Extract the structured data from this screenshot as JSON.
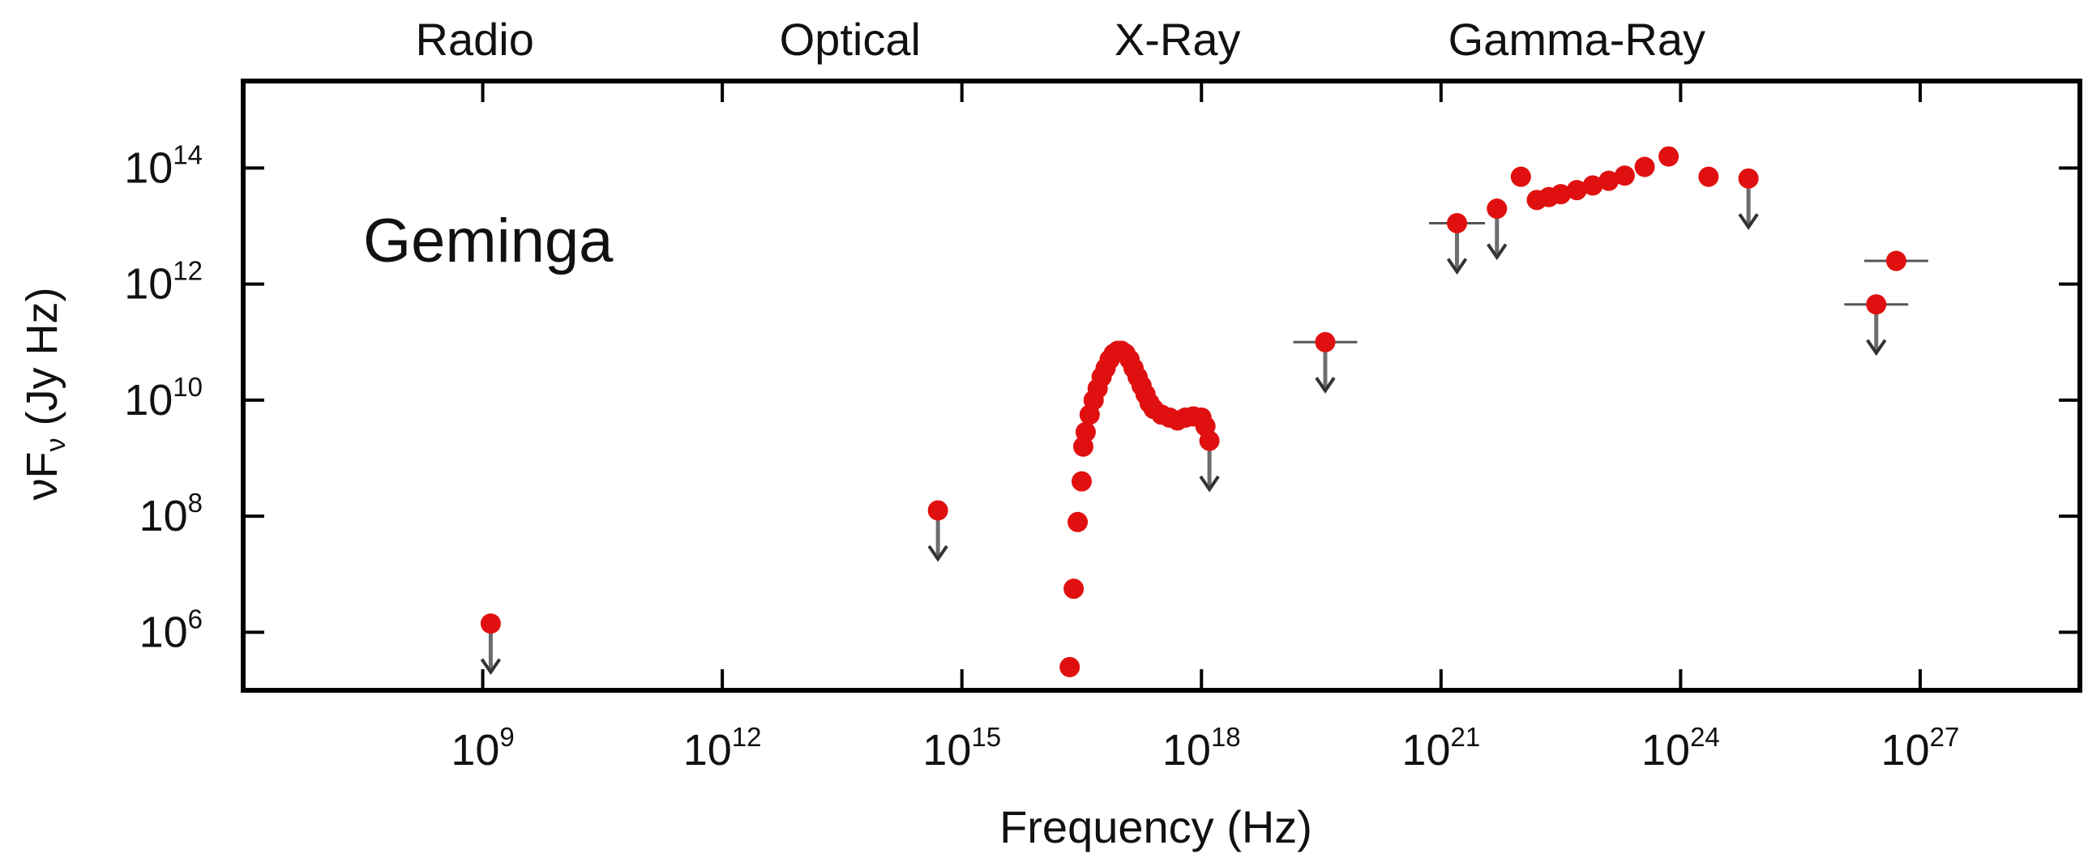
{
  "chart_data": {
    "type": "scatter",
    "title": "",
    "annotation": "Geminga",
    "xlabel": "Frequency (Hz)",
    "ylabel": "νF_ν (Jy Hz)",
    "x_scale": "log10",
    "y_scale": "log10",
    "xlim_exp": [
      6.0,
      29.0
    ],
    "ylim_exp": [
      5.0,
      15.5
    ],
    "x_ticks": [
      {
        "exp": 9,
        "label": "10",
        "sup": "9"
      },
      {
        "exp": 12,
        "label": "10",
        "sup": "12"
      },
      {
        "exp": 15,
        "label": "10",
        "sup": "15"
      },
      {
        "exp": 18,
        "label": "10",
        "sup": "18"
      },
      {
        "exp": 21,
        "label": "10",
        "sup": "21"
      },
      {
        "exp": 24,
        "label": "10",
        "sup": "24"
      },
      {
        "exp": 27,
        "label": "10",
        "sup": "27"
      }
    ],
    "y_ticks": [
      {
        "exp": 6,
        "label": "10",
        "sup": "6"
      },
      {
        "exp": 8,
        "label": "10",
        "sup": "8"
      },
      {
        "exp": 10,
        "label": "10",
        "sup": "10"
      },
      {
        "exp": 12,
        "label": "10",
        "sup": "12"
      },
      {
        "exp": 14,
        "label": "10",
        "sup": "14"
      }
    ],
    "bands": [
      {
        "name": "Radio",
        "center_exp": 8.9
      },
      {
        "name": "Optical",
        "center_exp": 13.6
      },
      {
        "name": "X-Ray",
        "center_exp": 17.7
      },
      {
        "name": "Gamma-Ray",
        "center_exp": 22.7
      }
    ],
    "series": [
      {
        "color": "#e01010",
        "points": [
          {
            "x": 9.1,
            "y": 6.15,
            "ul": true
          },
          {
            "x": 14.7,
            "y": 8.1,
            "ul": true
          },
          {
            "x": 16.35,
            "y": 5.4
          },
          {
            "x": 16.4,
            "y": 6.75
          },
          {
            "x": 16.45,
            "y": 7.9
          },
          {
            "x": 16.5,
            "y": 8.6
          },
          {
            "x": 16.52,
            "y": 9.2
          },
          {
            "x": 16.55,
            "y": 9.45
          },
          {
            "x": 16.6,
            "y": 9.75
          },
          {
            "x": 16.65,
            "y": 10.0
          },
          {
            "x": 16.7,
            "y": 10.2
          },
          {
            "x": 16.75,
            "y": 10.4
          },
          {
            "x": 16.8,
            "y": 10.55
          },
          {
            "x": 16.85,
            "y": 10.7
          },
          {
            "x": 16.9,
            "y": 10.8
          },
          {
            "x": 16.95,
            "y": 10.85
          },
          {
            "x": 17.0,
            "y": 10.85
          },
          {
            "x": 17.05,
            "y": 10.8
          },
          {
            "x": 17.1,
            "y": 10.7
          },
          {
            "x": 17.15,
            "y": 10.55
          },
          {
            "x": 17.2,
            "y": 10.4
          },
          {
            "x": 17.25,
            "y": 10.25
          },
          {
            "x": 17.3,
            "y": 10.1
          },
          {
            "x": 17.35,
            "y": 9.95
          },
          {
            "x": 17.4,
            "y": 9.85
          },
          {
            "x": 17.5,
            "y": 9.75
          },
          {
            "x": 17.6,
            "y": 9.7
          },
          {
            "x": 17.7,
            "y": 9.65
          },
          {
            "x": 17.8,
            "y": 9.7
          },
          {
            "x": 17.9,
            "y": 9.72
          },
          {
            "x": 18.0,
            "y": 9.7
          },
          {
            "x": 18.05,
            "y": 9.55
          },
          {
            "x": 18.1,
            "y": 9.3,
            "ul": true
          },
          {
            "x": 19.55,
            "y": 11.0,
            "ul": true,
            "xerr": 0.4
          },
          {
            "x": 21.2,
            "y": 13.05,
            "ul": true,
            "xerr": 0.35
          },
          {
            "x": 21.7,
            "y": 13.3,
            "ul": true
          },
          {
            "x": 22.0,
            "y": 13.85
          },
          {
            "x": 22.2,
            "y": 13.45
          },
          {
            "x": 22.35,
            "y": 13.5
          },
          {
            "x": 22.5,
            "y": 13.55
          },
          {
            "x": 22.7,
            "y": 13.62
          },
          {
            "x": 22.9,
            "y": 13.7
          },
          {
            "x": 23.1,
            "y": 13.78
          },
          {
            "x": 23.3,
            "y": 13.87
          },
          {
            "x": 23.55,
            "y": 14.02
          },
          {
            "x": 23.85,
            "y": 14.2
          },
          {
            "x": 24.35,
            "y": 13.85
          },
          {
            "x": 24.85,
            "y": 13.82,
            "ul": true
          },
          {
            "x": 26.45,
            "y": 11.65,
            "ul": true,
            "xerr": 0.4
          },
          {
            "x": 26.7,
            "y": 12.4,
            "xerr": 0.4
          }
        ]
      }
    ]
  }
}
